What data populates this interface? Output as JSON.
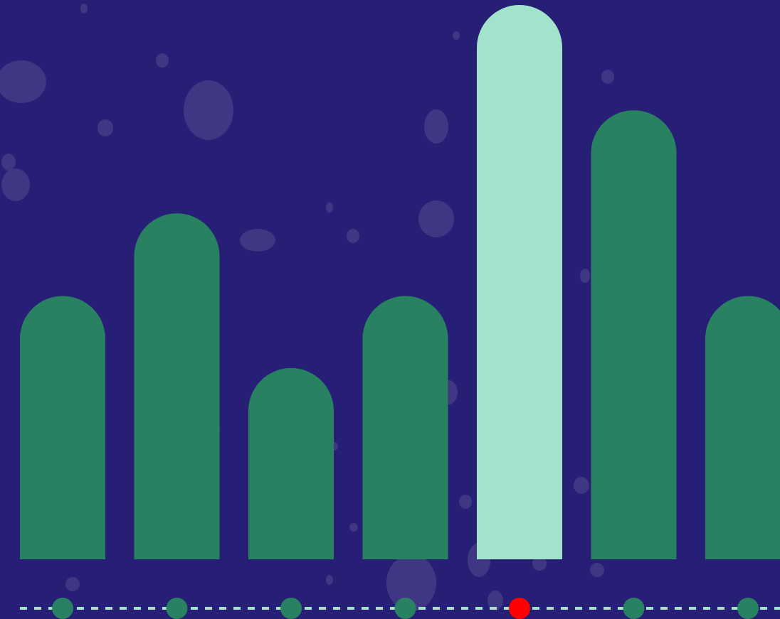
{
  "colors": {
    "background": "#271e75",
    "bar": "#288262",
    "bar_highlight": "#a3e2cb",
    "dot": "#288262",
    "dot_highlight": "#ff0000",
    "baseline": "#a3e2cb",
    "blob": "#3f3784"
  },
  "chart_data": {
    "type": "bar",
    "categories": [
      "",
      "",
      "",
      "",
      "",
      "",
      ""
    ],
    "values": [
      47.5,
      62.4,
      34.5,
      47.5,
      100,
      81,
      47.5
    ],
    "highlight_index": 4,
    "ylim": [
      0,
      100
    ],
    "grid": false,
    "legend": "none"
  }
}
